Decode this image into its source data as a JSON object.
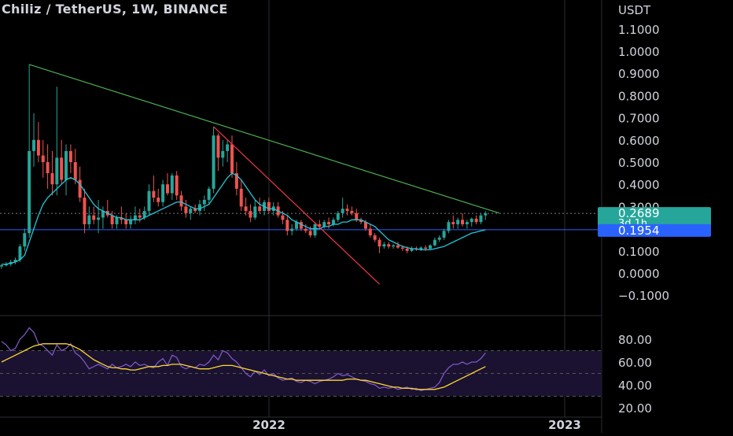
{
  "chart_title": "Chiliz / TetherUS, 1W, BINANCE",
  "currency_label": "USDT",
  "colors": {
    "background": "#000000",
    "bull": "#26a69a",
    "bear": "#ef5350",
    "ma": "#26c6da",
    "trend_green": "#4caf50",
    "trend_red": "#f23645",
    "hline_blue": "#2962ff",
    "rsi": "#7e57c2",
    "rsi_ma": "#fdd835"
  },
  "chart_data": [
    {
      "type": "candlestick",
      "title": "Chiliz / TetherUS, 1W, BINANCE",
      "y_axis": {
        "label": "USDT",
        "ticks": [
          -0.1,
          0.0,
          0.1,
          0.2,
          0.3,
          0.4,
          0.5,
          0.6,
          0.7,
          0.8,
          0.9,
          1.0,
          1.1
        ],
        "tick_labels": [
          "−0.1000",
          "0.0000",
          "0.1000",
          "0.2000",
          "0.3000",
          "0.4000",
          "0.5000",
          "0.6000",
          "0.7000",
          "0.8000",
          "0.9000",
          "1.0000",
          "1.1000"
        ],
        "range": [
          -0.13,
          1.22
        ]
      },
      "x_axis": {
        "tick_labels": [
          "2022",
          "2023"
        ]
      },
      "price_label": {
        "value": "0.2689",
        "countdown": "3d 1h"
      },
      "horizontal_line_label": "0.1954",
      "candles": [
        [
          0.03,
          0.04,
          0.02,
          0.035
        ],
        [
          0.035,
          0.05,
          0.03,
          0.04
        ],
        [
          0.04,
          0.06,
          0.03,
          0.05
        ],
        [
          0.05,
          0.07,
          0.04,
          0.06
        ],
        [
          0.06,
          0.13,
          0.05,
          0.12
        ],
        [
          0.12,
          0.2,
          0.1,
          0.18
        ],
        [
          0.18,
          0.94,
          0.16,
          0.55
        ],
        [
          0.55,
          0.72,
          0.48,
          0.6
        ],
        [
          0.6,
          0.68,
          0.5,
          0.53
        ],
        [
          0.53,
          0.6,
          0.43,
          0.5
        ],
        [
          0.5,
          0.58,
          0.38,
          0.45
        ],
        [
          0.45,
          0.55,
          0.35,
          0.4
        ],
        [
          0.4,
          0.84,
          0.35,
          0.52
        ],
        [
          0.52,
          0.6,
          0.4,
          0.42
        ],
        [
          0.42,
          0.58,
          0.35,
          0.55
        ],
        [
          0.55,
          0.58,
          0.45,
          0.5
        ],
        [
          0.5,
          0.56,
          0.4,
          0.42
        ],
        [
          0.42,
          0.48,
          0.32,
          0.34
        ],
        [
          0.34,
          0.38,
          0.18,
          0.22
        ],
        [
          0.22,
          0.3,
          0.2,
          0.26
        ],
        [
          0.26,
          0.3,
          0.22,
          0.24
        ],
        [
          0.24,
          0.33,
          0.18,
          0.25
        ],
        [
          0.25,
          0.3,
          0.2,
          0.28
        ],
        [
          0.28,
          0.33,
          0.25,
          0.26
        ],
        [
          0.26,
          0.28,
          0.2,
          0.22
        ],
        [
          0.22,
          0.26,
          0.2,
          0.25
        ],
        [
          0.25,
          0.3,
          0.22,
          0.24
        ],
        [
          0.24,
          0.27,
          0.2,
          0.22
        ],
        [
          0.22,
          0.26,
          0.2,
          0.24
        ],
        [
          0.24,
          0.3,
          0.22,
          0.26
        ],
        [
          0.26,
          0.29,
          0.23,
          0.25
        ],
        [
          0.25,
          0.3,
          0.24,
          0.28
        ],
        [
          0.28,
          0.4,
          0.26,
          0.37
        ],
        [
          0.37,
          0.44,
          0.32,
          0.34
        ],
        [
          0.34,
          0.38,
          0.3,
          0.32
        ],
        [
          0.32,
          0.42,
          0.3,
          0.4
        ],
        [
          0.4,
          0.45,
          0.35,
          0.36
        ],
        [
          0.36,
          0.45,
          0.33,
          0.44
        ],
        [
          0.44,
          0.46,
          0.33,
          0.35
        ],
        [
          0.35,
          0.37,
          0.28,
          0.3
        ],
        [
          0.3,
          0.33,
          0.25,
          0.27
        ],
        [
          0.27,
          0.3,
          0.24,
          0.29
        ],
        [
          0.29,
          0.31,
          0.27,
          0.28
        ],
        [
          0.28,
          0.33,
          0.26,
          0.31
        ],
        [
          0.31,
          0.35,
          0.28,
          0.33
        ],
        [
          0.33,
          0.39,
          0.31,
          0.38
        ],
        [
          0.38,
          0.66,
          0.36,
          0.62
        ],
        [
          0.62,
          0.63,
          0.46,
          0.52
        ],
        [
          0.52,
          0.6,
          0.48,
          0.55
        ],
        [
          0.55,
          0.6,
          0.5,
          0.58
        ],
        [
          0.58,
          0.62,
          0.43,
          0.45
        ],
        [
          0.45,
          0.5,
          0.35,
          0.38
        ],
        [
          0.38,
          0.42,
          0.28,
          0.3
        ],
        [
          0.3,
          0.34,
          0.26,
          0.28
        ],
        [
          0.28,
          0.31,
          0.23,
          0.25
        ],
        [
          0.25,
          0.33,
          0.24,
          0.3
        ],
        [
          0.3,
          0.34,
          0.27,
          0.28
        ],
        [
          0.28,
          0.33,
          0.26,
          0.32
        ],
        [
          0.32,
          0.34,
          0.27,
          0.28
        ],
        [
          0.28,
          0.32,
          0.26,
          0.3
        ],
        [
          0.3,
          0.32,
          0.25,
          0.26
        ],
        [
          0.26,
          0.28,
          0.22,
          0.24
        ],
        [
          0.24,
          0.26,
          0.17,
          0.19
        ],
        [
          0.19,
          0.22,
          0.17,
          0.2
        ],
        [
          0.2,
          0.24,
          0.19,
          0.23
        ],
        [
          0.23,
          0.24,
          0.19,
          0.2
        ],
        [
          0.2,
          0.22,
          0.18,
          0.19
        ],
        [
          0.19,
          0.21,
          0.16,
          0.17
        ],
        [
          0.17,
          0.23,
          0.16,
          0.22
        ],
        [
          0.22,
          0.24,
          0.2,
          0.21
        ],
        [
          0.21,
          0.24,
          0.2,
          0.23
        ],
        [
          0.23,
          0.25,
          0.2,
          0.22
        ],
        [
          0.22,
          0.25,
          0.21,
          0.24
        ],
        [
          0.24,
          0.28,
          0.23,
          0.27
        ],
        [
          0.27,
          0.34,
          0.25,
          0.29
        ],
        [
          0.29,
          0.31,
          0.26,
          0.28
        ],
        [
          0.28,
          0.3,
          0.26,
          0.27
        ],
        [
          0.27,
          0.29,
          0.23,
          0.24
        ],
        [
          0.24,
          0.25,
          0.22,
          0.23
        ],
        [
          0.23,
          0.24,
          0.19,
          0.2
        ],
        [
          0.2,
          0.22,
          0.16,
          0.17
        ],
        [
          0.17,
          0.18,
          0.14,
          0.15
        ],
        [
          0.15,
          0.16,
          0.09,
          0.12
        ],
        [
          0.12,
          0.14,
          0.11,
          0.13
        ],
        [
          0.13,
          0.14,
          0.11,
          0.12
        ],
        [
          0.12,
          0.13,
          0.11,
          0.125
        ],
        [
          0.125,
          0.14,
          0.11,
          0.115
        ],
        [
          0.115,
          0.125,
          0.1,
          0.11
        ],
        [
          0.11,
          0.12,
          0.09,
          0.1
        ],
        [
          0.1,
          0.12,
          0.095,
          0.11
        ],
        [
          0.11,
          0.12,
          0.1,
          0.105
        ],
        [
          0.105,
          0.12,
          0.1,
          0.115
        ],
        [
          0.115,
          0.125,
          0.1,
          0.11
        ],
        [
          0.11,
          0.13,
          0.105,
          0.125
        ],
        [
          0.125,
          0.16,
          0.12,
          0.15
        ],
        [
          0.15,
          0.17,
          0.14,
          0.16
        ],
        [
          0.16,
          0.2,
          0.15,
          0.19
        ],
        [
          0.19,
          0.24,
          0.18,
          0.23
        ],
        [
          0.23,
          0.26,
          0.2,
          0.22
        ],
        [
          0.22,
          0.25,
          0.2,
          0.24
        ],
        [
          0.24,
          0.27,
          0.21,
          0.22
        ],
        [
          0.22,
          0.24,
          0.2,
          0.23
        ],
        [
          0.23,
          0.25,
          0.21,
          0.245
        ],
        [
          0.245,
          0.26,
          0.22,
          0.23
        ],
        [
          0.23,
          0.27,
          0.22,
          0.26
        ],
        [
          0.26,
          0.28,
          0.24,
          0.2689
        ]
      ],
      "moving_average": [
        0.04,
        0.04,
        0.045,
        0.05,
        0.06,
        0.08,
        0.14,
        0.2,
        0.26,
        0.31,
        0.34,
        0.36,
        0.38,
        0.4,
        0.42,
        0.43,
        0.42,
        0.4,
        0.37,
        0.34,
        0.31,
        0.29,
        0.28,
        0.27,
        0.26,
        0.25,
        0.25,
        0.24,
        0.24,
        0.24,
        0.24,
        0.25,
        0.26,
        0.27,
        0.28,
        0.29,
        0.3,
        0.31,
        0.32,
        0.32,
        0.31,
        0.3,
        0.29,
        0.29,
        0.3,
        0.31,
        0.34,
        0.37,
        0.4,
        0.43,
        0.45,
        0.44,
        0.42,
        0.39,
        0.36,
        0.33,
        0.31,
        0.3,
        0.29,
        0.29,
        0.28,
        0.27,
        0.26,
        0.24,
        0.23,
        0.22,
        0.21,
        0.2,
        0.2,
        0.2,
        0.21,
        0.21,
        0.22,
        0.22,
        0.23,
        0.23,
        0.24,
        0.24,
        0.24,
        0.23,
        0.22,
        0.21,
        0.19,
        0.17,
        0.15,
        0.14,
        0.13,
        0.12,
        0.115,
        0.11,
        0.11,
        0.105,
        0.105,
        0.105,
        0.11,
        0.115,
        0.12,
        0.13,
        0.14,
        0.15,
        0.16,
        0.17,
        0.18,
        0.185,
        0.19,
        0.195
      ],
      "trendlines": [
        {
          "color": "trend_green",
          "x": [
            6,
            108
          ],
          "y": [
            0.94,
            0.27
          ]
        },
        {
          "color": "trend_red",
          "x": [
            46,
            82
          ],
          "y": [
            0.66,
            -0.05
          ]
        }
      ],
      "horizontal_line": 0.1954,
      "last_price_line": 0.2689
    },
    {
      "type": "line",
      "title": "",
      "y_axis": {
        "ticks": [
          20,
          40,
          60,
          80
        ],
        "tick_labels": [
          "20.00",
          "40.00",
          "60.00",
          "80.00"
        ],
        "range": [
          18,
          95
        ]
      },
      "bands": {
        "upper": 70,
        "middle": 50,
        "lower": 30
      },
      "series": [
        {
          "color": "rsi",
          "values": [
            78,
            75,
            70,
            72,
            80,
            84,
            90,
            86,
            76,
            74,
            70,
            66,
            75,
            70,
            72,
            76,
            68,
            65,
            60,
            54,
            56,
            58,
            56,
            54,
            58,
            55,
            56,
            58,
            56,
            60,
            57,
            58,
            56,
            55,
            60,
            63,
            57,
            66,
            64,
            56,
            54,
            56,
            55,
            58,
            57,
            60,
            66,
            62,
            70,
            68,
            63,
            60,
            55,
            50,
            47,
            52,
            49,
            53,
            48,
            50,
            46,
            44,
            45,
            46,
            43,
            42,
            44,
            43,
            41,
            43,
            44,
            45,
            47,
            50,
            48,
            49,
            47,
            45,
            44,
            43,
            41,
            40,
            37,
            38,
            37,
            38,
            36,
            37,
            38,
            36,
            37,
            35,
            36,
            37,
            38,
            42,
            50,
            55,
            58,
            58,
            60,
            58,
            60,
            60,
            63,
            68
          ]
        },
        {
          "color": "rsi_ma",
          "values": [
            60,
            62,
            64,
            66,
            68,
            70,
            72,
            74,
            75,
            76,
            76,
            76,
            76,
            76,
            76,
            75,
            73,
            71,
            68,
            65,
            62,
            60,
            58,
            56,
            55,
            55,
            54,
            54,
            53,
            53,
            54,
            55,
            56,
            56,
            56,
            57,
            57,
            58,
            58,
            58,
            57,
            56,
            55,
            54,
            54,
            54,
            55,
            56,
            57,
            57,
            57,
            56,
            55,
            54,
            53,
            52,
            51,
            50,
            49,
            48,
            47,
            46,
            45,
            45,
            44,
            44,
            44,
            44,
            44,
            44,
            44,
            44,
            44,
            44,
            44,
            45,
            45,
            45,
            44,
            44,
            43,
            42,
            41,
            40,
            39,
            38,
            38,
            37,
            37,
            37,
            36,
            36,
            36,
            36,
            36,
            37,
            38,
            40,
            42,
            44,
            46,
            48,
            50,
            52,
            54,
            56
          ]
        }
      ]
    }
  ]
}
